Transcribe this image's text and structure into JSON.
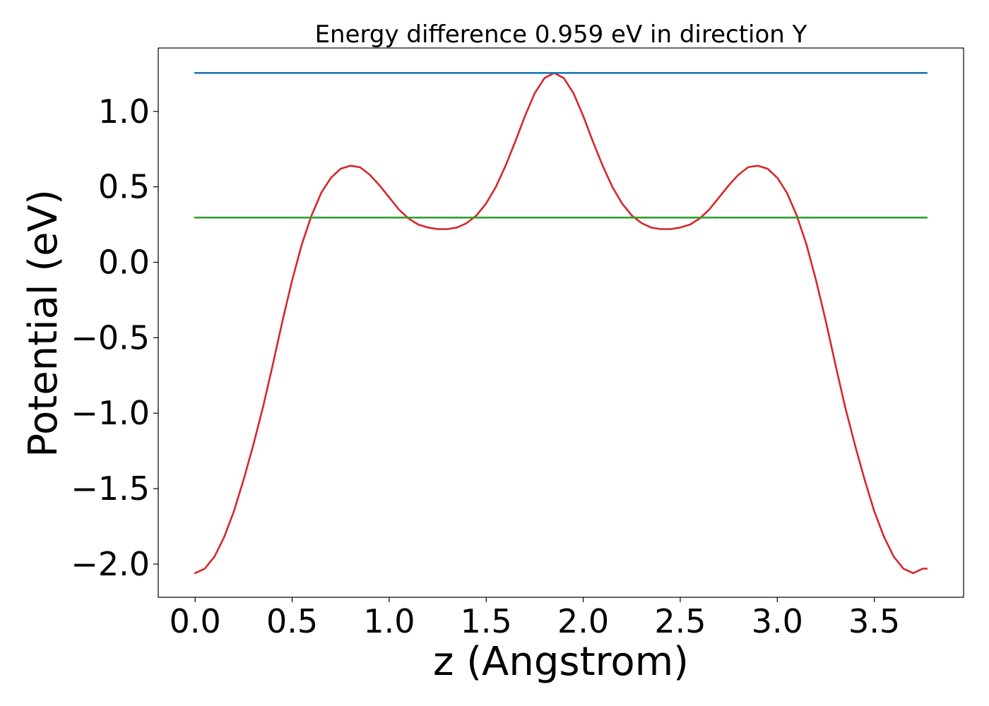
{
  "chart_data": {
    "type": "line",
    "title": "Energy difference 0.959 eV in direction Y",
    "xlabel": "z (Angstrom)",
    "ylabel": "Potential (eV)",
    "xlim": [
      -0.19,
      3.96
    ],
    "ylim": [
      -2.22,
      1.42
    ],
    "xticks": [
      0.0,
      0.5,
      1.0,
      1.5,
      2.0,
      2.5,
      3.0,
      3.5
    ],
    "xtick_labels": [
      "0.0",
      "0.5",
      "1.0",
      "1.5",
      "2.0",
      "2.5",
      "3.0",
      "3.5"
    ],
    "yticks": [
      -2.0,
      -1.5,
      -1.0,
      -0.5,
      0.0,
      0.5,
      1.0
    ],
    "ytick_labels": [
      "−2.0",
      "−1.5",
      "−1.0",
      "−0.5",
      "0.0",
      "0.5",
      "1.0"
    ],
    "grid": false,
    "series": [
      {
        "color": "#d62728",
        "x": [
          0.0,
          0.05,
          0.1,
          0.15,
          0.2,
          0.25,
          0.3,
          0.35,
          0.4,
          0.45,
          0.5,
          0.55,
          0.6,
          0.65,
          0.7,
          0.75,
          0.8,
          0.85,
          0.9,
          0.95,
          1.0,
          1.05,
          1.1,
          1.15,
          1.2,
          1.25,
          1.3,
          1.35,
          1.4,
          1.45,
          1.5,
          1.55,
          1.6,
          1.65,
          1.7,
          1.75,
          1.8,
          1.85,
          1.9,
          1.95,
          2.0,
          2.05,
          2.1,
          2.15,
          2.2,
          2.25,
          2.3,
          2.35,
          2.4,
          2.45,
          2.5,
          2.55,
          2.6,
          2.65,
          2.7,
          2.75,
          2.8,
          2.85,
          2.9,
          2.95,
          3.0,
          3.05,
          3.1,
          3.15,
          3.2,
          3.25,
          3.3,
          3.35,
          3.4,
          3.45,
          3.5,
          3.55,
          3.6,
          3.65,
          3.7,
          3.75,
          3.77
        ],
        "y": [
          -2.06,
          -2.03,
          -1.95,
          -1.82,
          -1.65,
          -1.44,
          -1.21,
          -0.96,
          -0.68,
          -0.39,
          -0.12,
          0.12,
          0.31,
          0.46,
          0.56,
          0.62,
          0.64,
          0.63,
          0.58,
          0.51,
          0.43,
          0.35,
          0.29,
          0.25,
          0.23,
          0.22,
          0.22,
          0.23,
          0.26,
          0.31,
          0.39,
          0.5,
          0.64,
          0.8,
          0.97,
          1.12,
          1.22,
          1.255,
          1.22,
          1.12,
          0.97,
          0.8,
          0.64,
          0.5,
          0.39,
          0.31,
          0.26,
          0.23,
          0.22,
          0.22,
          0.23,
          0.25,
          0.29,
          0.35,
          0.43,
          0.51,
          0.58,
          0.63,
          0.64,
          0.62,
          0.56,
          0.46,
          0.31,
          0.12,
          -0.12,
          -0.39,
          -0.68,
          -0.96,
          -1.21,
          -1.44,
          -1.65,
          -1.82,
          -1.95,
          -2.03,
          -2.06,
          -2.03,
          -2.03
        ]
      },
      {
        "color": "#1f77b4",
        "x": [
          0.0,
          3.77
        ],
        "y": [
          1.255,
          1.255
        ]
      },
      {
        "color": "#2ca02c",
        "x": [
          0.0,
          3.77
        ],
        "y": [
          0.296,
          0.296
        ]
      }
    ]
  }
}
